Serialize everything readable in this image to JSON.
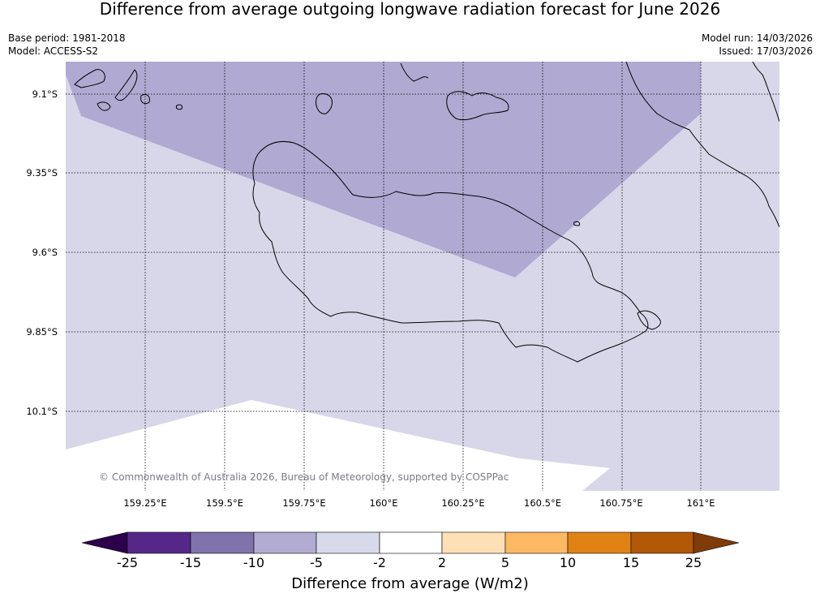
{
  "title": "Difference from average outgoing longwave radiation forecast for June 2026",
  "meta": {
    "base_period": "Base period: 1981-2018",
    "model": "Model: ACCESS-S2",
    "model_run": "Model run: 14/03/2026",
    "issued": "Issued: 17/03/2026"
  },
  "map": {
    "copyright": "© Commonwealth of Australia 2026, Bureau of Meteorology, supported by COSPPac",
    "lat_labels": [
      "9.1°S",
      "9.35°S",
      "9.6°S",
      "9.85°S",
      "10.1°S"
    ],
    "lon_labels": [
      "159.25°E",
      "159.5°E",
      "159.75°E",
      "160°E",
      "160.25°E",
      "160.5°E",
      "160.75°E",
      "161°E"
    ],
    "colors": {
      "band_minus10_to_minus5": "#b0a9d2",
      "band_minus5_to_minus2": "#d7d7e9",
      "band_minus2_to_2": "#ffffff",
      "coastline": "#000000",
      "gridline": "#000000"
    }
  },
  "colorbar": {
    "title": "Difference from average (W/m2)",
    "ticks": [
      "-25",
      "-15",
      "-10",
      "-5",
      "-2",
      "2",
      "5",
      "10",
      "15",
      "25"
    ],
    "colors": {
      "below_min": "#2d004b",
      "band1": "#542788",
      "band2": "#8073ac",
      "band3": "#b2abd2",
      "band4": "#d8daeb",
      "band5": "#ffffff",
      "band6": "#fee0b6",
      "band7": "#fdb863",
      "band8": "#e08214",
      "band9": "#b35806",
      "above_max": "#7f3b08"
    }
  }
}
